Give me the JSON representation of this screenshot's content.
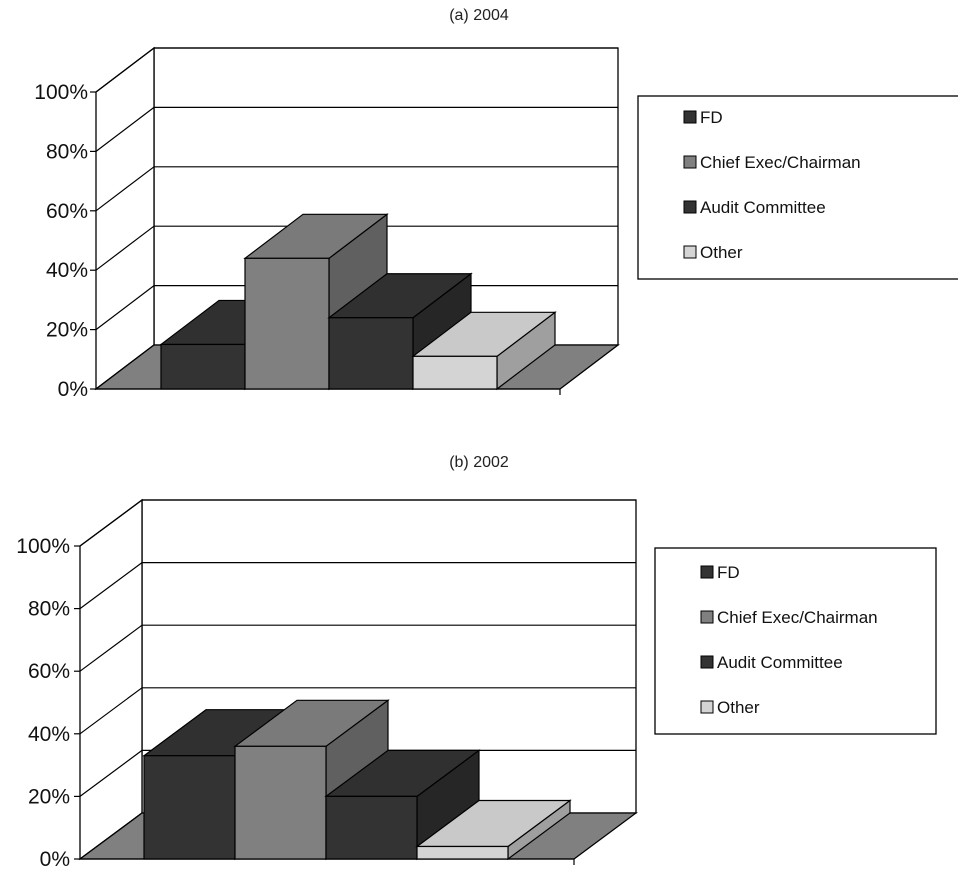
{
  "chart_data": [
    {
      "type": "bar",
      "title": "(a)  2004",
      "categories": [
        "FD",
        "Chief Exec/Chairman",
        "Audit Committee",
        "Other"
      ],
      "values": [
        15,
        44,
        24,
        11
      ],
      "value_unit": "%",
      "ylim": [
        0,
        100
      ],
      "yticks": [
        "0%",
        "20%",
        "40%",
        "60%",
        "80%",
        "100%"
      ],
      "grid": true,
      "three_d": true,
      "legend": {
        "position": "right",
        "entries": [
          "FD",
          "Chief Exec/Chairman",
          "Audit Committee",
          "Other"
        ]
      },
      "colors": [
        "#333333",
        "#808080",
        "#333333",
        "#d4d4d4"
      ],
      "floor_color": "#808080"
    },
    {
      "type": "bar",
      "title": "(b)  2002",
      "categories": [
        "FD",
        "Chief Exec/Chairman",
        "Audit Committee",
        "Other"
      ],
      "values": [
        33,
        36,
        20,
        4
      ],
      "value_unit": "%",
      "ylim": [
        0,
        100
      ],
      "yticks": [
        "0%",
        "20%",
        "40%",
        "60%",
        "80%",
        "100%"
      ],
      "grid": true,
      "three_d": true,
      "legend": {
        "position": "right",
        "entries": [
          "FD",
          "Chief Exec/Chairman",
          "Audit Committee",
          "Other"
        ]
      },
      "colors": [
        "#333333",
        "#808080",
        "#333333",
        "#d4d4d4"
      ],
      "floor_color": "#808080"
    }
  ]
}
